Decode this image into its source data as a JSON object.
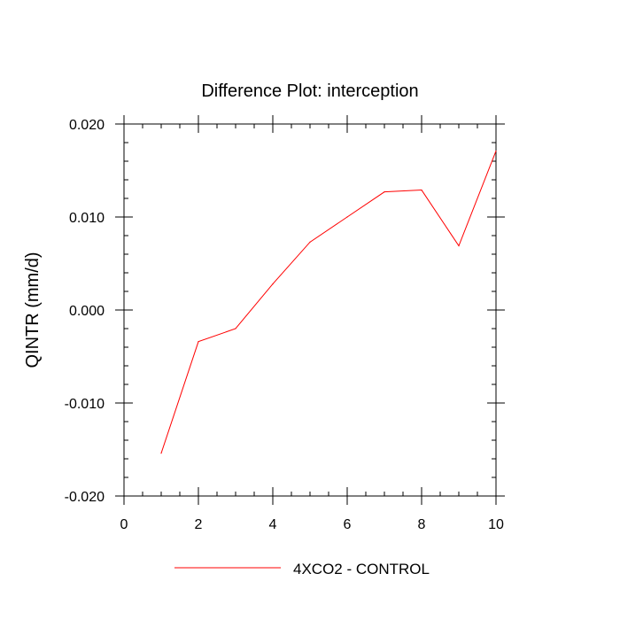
{
  "chart_data": {
    "type": "line",
    "title": "Difference Plot: interception",
    "xlabel": "",
    "ylabel": "QINTR  (mm/d)",
    "xlim": [
      0,
      10
    ],
    "ylim": [
      -0.02,
      0.02
    ],
    "x_ticks": [
      0,
      2,
      4,
      6,
      8,
      10
    ],
    "x_tick_labels": [
      "0",
      "2",
      "4",
      "6",
      "8",
      "10"
    ],
    "y_ticks": [
      -0.02,
      -0.01,
      0.0,
      0.01,
      0.02
    ],
    "y_tick_labels": [
      "-0.020",
      "-0.010",
      "0.000",
      "0.010",
      "0.020"
    ],
    "grid": false,
    "legend_position": "bottom-center",
    "series": [
      {
        "name": "4XCO2 - CONTROL",
        "color": "#ff0000",
        "x": [
          1,
          2,
          3,
          4,
          5,
          6,
          7,
          8,
          9,
          10
        ],
        "values": [
          -0.0154,
          -0.0034,
          -0.002,
          0.0028,
          0.0073,
          0.01,
          0.0127,
          0.0129,
          0.0069,
          0.0171
        ]
      }
    ]
  }
}
